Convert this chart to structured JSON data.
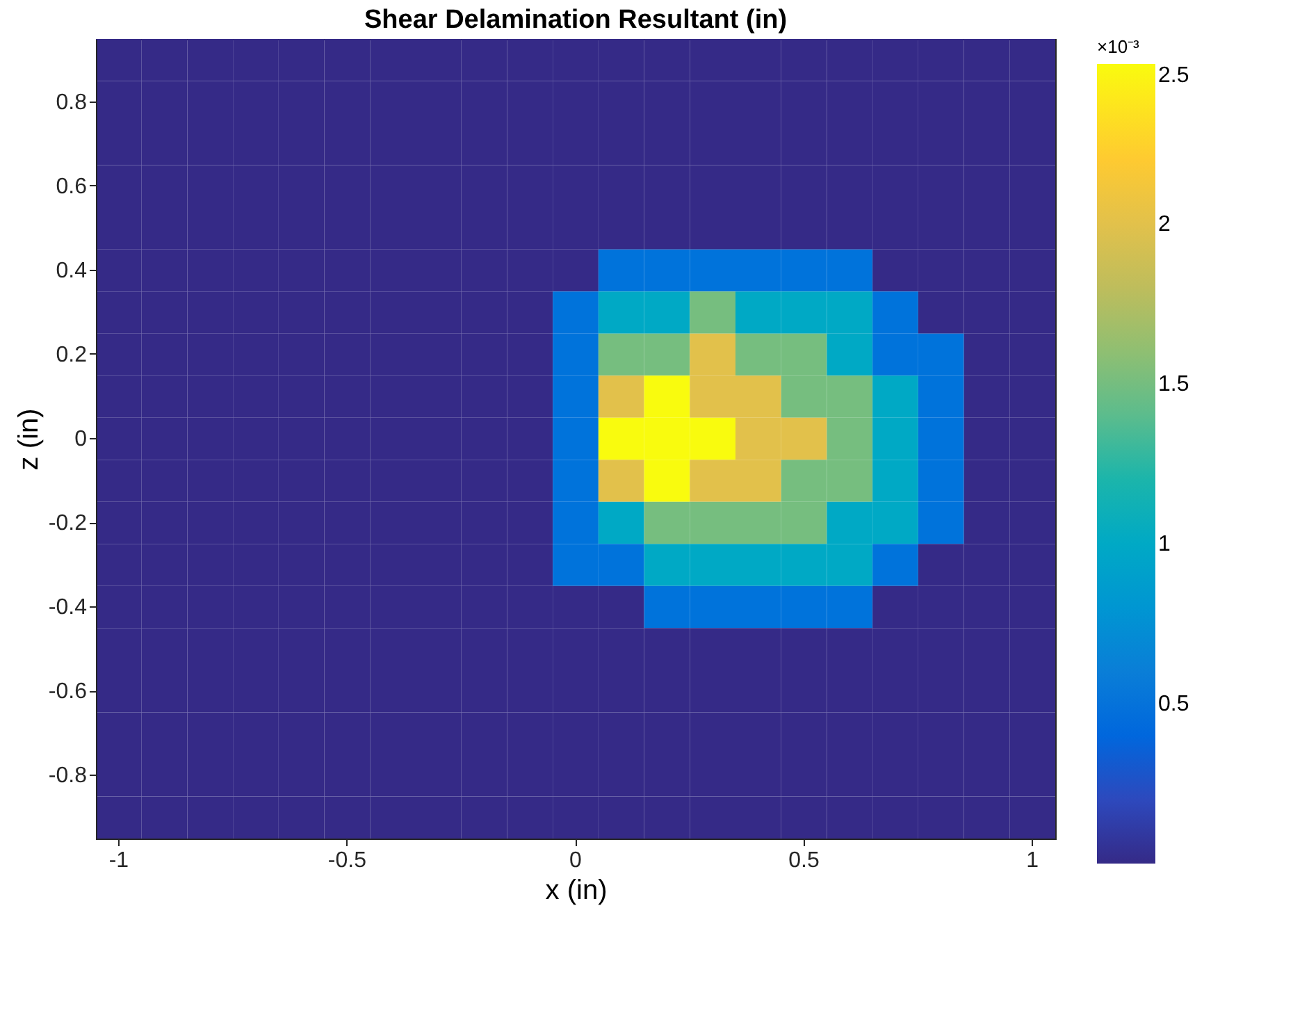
{
  "chart_data": {
    "type": "heatmap",
    "title": "Shear Delamination Resultant (in)",
    "xlabel": "x (in)",
    "ylabel": "z (in)",
    "annotations": [
      "×10⁻³"
    ],
    "clim": [
      0,
      2.5
    ],
    "cticks": [
      0.5,
      1,
      1.5,
      2,
      2.5
    ],
    "grid": false,
    "categories": [
      "-1",
      null,
      null,
      null,
      null,
      "-0.5",
      null,
      null,
      null,
      null,
      "0",
      null,
      null,
      null,
      null,
      "0.5",
      null,
      null,
      null,
      null,
      "1"
    ],
    "y_categories": [
      null,
      "0.8",
      null,
      "0.6",
      null,
      "0.4",
      null,
      "0.2",
      null,
      "0",
      null,
      "-0.2",
      null,
      "-0.4",
      null,
      "-0.6",
      null,
      "-0.8",
      null
    ],
    "cells": [
      [
        0,
        0,
        0,
        0,
        0,
        0,
        0,
        0,
        0,
        0,
        0,
        0,
        0,
        0,
        0,
        0,
        0,
        0,
        0,
        0,
        0
      ],
      [
        0,
        0,
        0,
        0,
        0,
        0,
        0,
        0,
        0,
        0,
        0,
        0,
        0,
        0,
        0,
        0,
        0,
        0,
        0,
        0,
        0
      ],
      [
        0,
        0,
        0,
        0,
        0,
        0,
        0,
        0,
        0,
        0,
        0,
        0,
        0,
        0,
        0,
        0,
        0,
        0,
        0,
        0,
        0
      ],
      [
        0,
        0,
        0,
        0,
        0,
        0,
        0,
        0,
        0,
        0,
        0,
        0,
        0,
        0,
        0,
        0,
        0,
        0,
        0,
        0,
        0
      ],
      [
        0,
        0,
        0,
        0,
        0,
        0,
        0,
        0,
        0,
        0,
        0,
        0,
        0,
        0,
        0,
        0,
        0,
        0,
        0,
        0,
        0
      ],
      [
        0,
        0,
        0,
        0,
        0,
        0,
        0,
        0,
        0,
        0,
        0,
        0.5,
        0.5,
        0.5,
        0.5,
        0.5,
        0.5,
        0,
        0,
        0,
        0
      ],
      [
        0,
        0,
        0,
        0,
        0,
        0,
        0,
        0,
        0,
        0,
        0.5,
        1,
        1,
        1.5,
        1,
        1,
        1,
        0.5,
        0,
        0,
        0
      ],
      [
        0,
        0,
        0,
        0,
        0,
        0,
        0,
        0,
        0,
        0,
        0.5,
        1.5,
        1.5,
        2,
        1.5,
        1.5,
        1,
        0.5,
        0.5,
        0,
        0
      ],
      [
        0,
        0,
        0,
        0,
        0,
        0,
        0,
        0,
        0,
        0,
        0.5,
        2,
        2.5,
        2,
        2,
        1.5,
        1.5,
        1,
        0.5,
        0,
        0
      ],
      [
        0,
        0,
        0,
        0,
        0,
        0,
        0,
        0,
        0,
        0,
        0.5,
        2.5,
        2.5,
        2.5,
        2,
        2,
        1.5,
        1,
        0.5,
        0,
        0
      ],
      [
        0,
        0,
        0,
        0,
        0,
        0,
        0,
        0,
        0,
        0,
        0.5,
        2,
        2.5,
        2,
        2,
        1.5,
        1.5,
        1,
        0.5,
        0,
        0
      ],
      [
        0,
        0,
        0,
        0,
        0,
        0,
        0,
        0,
        0,
        0,
        0.5,
        1,
        1.5,
        1.5,
        1.5,
        1.5,
        1,
        1,
        0.5,
        0,
        0
      ],
      [
        0,
        0,
        0,
        0,
        0,
        0,
        0,
        0,
        0,
        0,
        0.5,
        0.5,
        1,
        1,
        1,
        1,
        1,
        0.5,
        0,
        0,
        0
      ],
      [
        0,
        0,
        0,
        0,
        0,
        0,
        0,
        0,
        0,
        0,
        0,
        0,
        0.5,
        0.5,
        0.5,
        0.5,
        0.5,
        0,
        0,
        0,
        0
      ],
      [
        0,
        0,
        0,
        0,
        0,
        0,
        0,
        0,
        0,
        0,
        0,
        0,
        0,
        0,
        0,
        0,
        0,
        0,
        0,
        0,
        0
      ],
      [
        0,
        0,
        0,
        0,
        0,
        0,
        0,
        0,
        0,
        0,
        0,
        0,
        0,
        0,
        0,
        0,
        0,
        0,
        0,
        0,
        0
      ],
      [
        0,
        0,
        0,
        0,
        0,
        0,
        0,
        0,
        0,
        0,
        0,
        0,
        0,
        0,
        0,
        0,
        0,
        0,
        0,
        0,
        0
      ],
      [
        0,
        0,
        0,
        0,
        0,
        0,
        0,
        0,
        0,
        0,
        0,
        0,
        0,
        0,
        0,
        0,
        0,
        0,
        0,
        0,
        0
      ],
      [
        0,
        0,
        0,
        0,
        0,
        0,
        0,
        0,
        0,
        0,
        0,
        0,
        0,
        0,
        0,
        0,
        0,
        0,
        0,
        0,
        0
      ]
    ]
  }
}
